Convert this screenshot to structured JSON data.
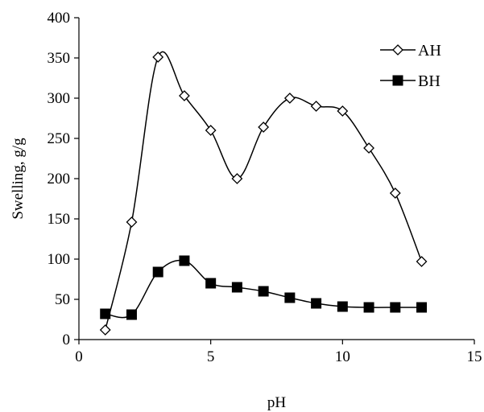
{
  "chart_data": {
    "type": "line",
    "title": "",
    "xlabel": "pH",
    "ylabel": "Swelling, g/g",
    "xlim": [
      0,
      15
    ],
    "ylim": [
      0,
      400
    ],
    "xticks": [
      0,
      5,
      10,
      15
    ],
    "yticks": [
      0,
      50,
      100,
      150,
      200,
      250,
      300,
      350,
      400
    ],
    "grid": false,
    "legend": "top-right",
    "series": [
      {
        "name": "AH",
        "marker": "diamond-open",
        "color": "#000000",
        "x": [
          1,
          2,
          3,
          4,
          5,
          6,
          7,
          8,
          9,
          10,
          11,
          12,
          13
        ],
        "y": [
          12,
          146,
          351,
          303,
          260,
          200,
          264,
          300,
          290,
          284,
          238,
          182,
          97
        ]
      },
      {
        "name": "BH",
        "marker": "square-filled",
        "color": "#000000",
        "x": [
          1,
          2,
          3,
          4,
          5,
          6,
          7,
          8,
          9,
          10,
          11,
          12,
          13
        ],
        "y": [
          32,
          31,
          84,
          98,
          70,
          65,
          60,
          52,
          45,
          41,
          40,
          40,
          40
        ]
      }
    ]
  }
}
